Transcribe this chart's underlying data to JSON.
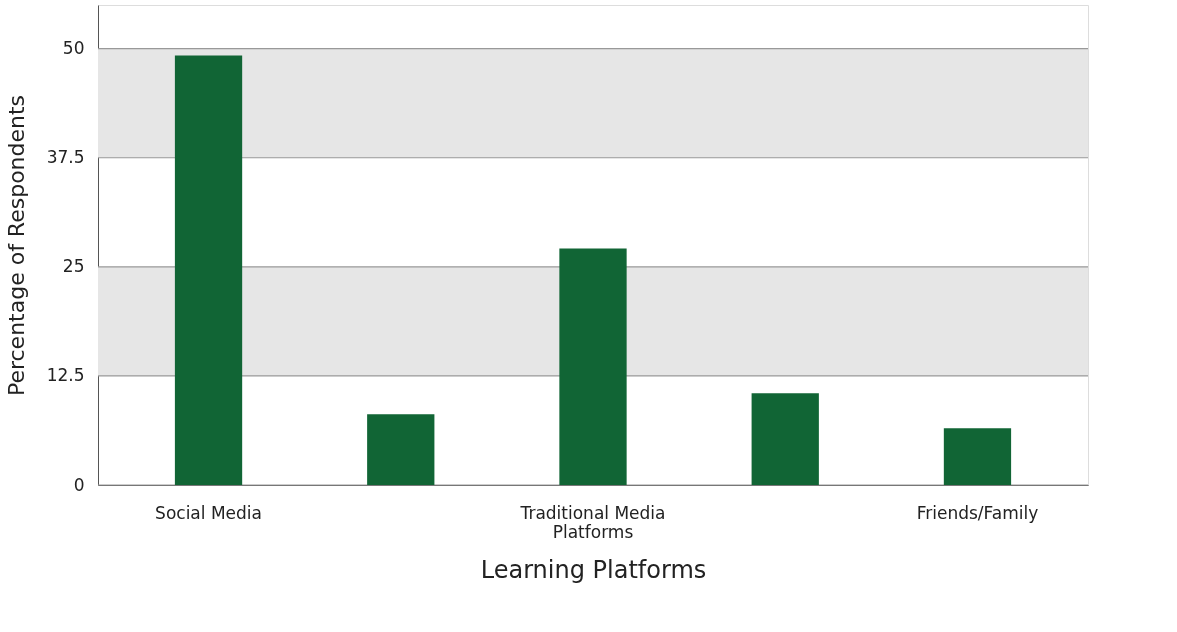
{
  "chart_data": {
    "type": "bar",
    "xlabel": "Learning Platforms",
    "ylabel": "Percentage of Respondents",
    "categories": [
      "Social Media",
      null,
      "Traditional Media Platforms",
      null,
      "Friends/Family"
    ],
    "values": [
      49.2,
      8.1,
      27.1,
      10.5,
      6.5
    ],
    "color": "#116535",
    "ylim": [
      0,
      55
    ],
    "yticks": [
      0,
      12.5,
      25,
      37.5,
      50
    ],
    "grid": "y",
    "bands": [
      {
        "axis": "y",
        "from": 12.5,
        "to": 25,
        "color": "#e6e6e6"
      },
      {
        "axis": "y",
        "from": 37.5,
        "to": 50,
        "color": "#e6e6e6"
      }
    ]
  }
}
